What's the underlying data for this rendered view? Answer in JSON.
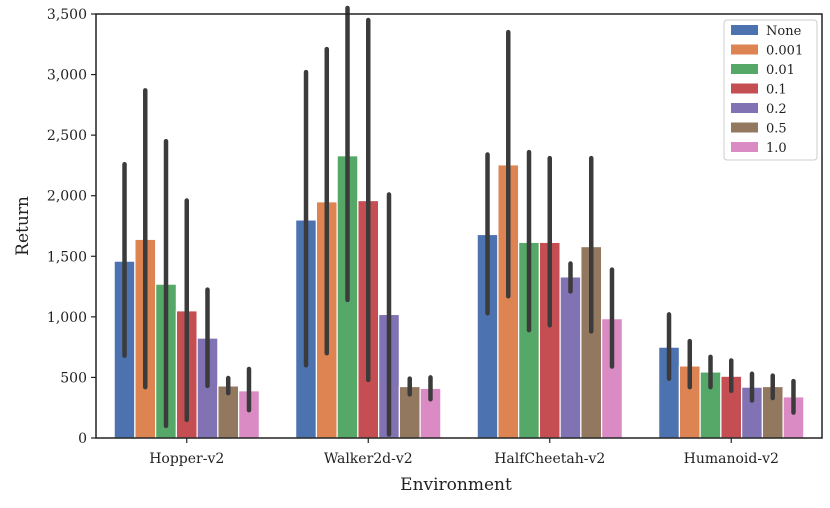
{
  "chart_data": {
    "type": "bar",
    "title": "",
    "xlabel": "Environment",
    "ylabel": "Return",
    "ylim": [
      0,
      3500
    ],
    "yticks": [
      0,
      500,
      1000,
      1500,
      2000,
      2500,
      3000,
      3500
    ],
    "ytick_labels": [
      "0",
      "500",
      "1,000",
      "1,500",
      "2,000",
      "2,500",
      "3,000",
      "3,500"
    ],
    "categories": [
      "Hopper-v2",
      "Walker2d-v2",
      "HalfCheetah-v2",
      "Humanoid-v2"
    ],
    "legend_position": "top-right",
    "grid": false,
    "series": [
      {
        "name": "None",
        "color": "#4c72b0",
        "values": [
          1460,
          1800,
          1680,
          750
        ],
        "ci_low": [
          680,
          600,
          1030,
          490
        ],
        "ci_high": [
          2260,
          3020,
          2340,
          1020
        ]
      },
      {
        "name": "0.001",
        "color": "#dd8452",
        "values": [
          1640,
          1950,
          2255,
          595
        ],
        "ci_low": [
          420,
          700,
          1170,
          420
        ],
        "ci_high": [
          2870,
          3210,
          3350,
          800
        ]
      },
      {
        "name": "0.01",
        "color": "#55a868",
        "values": [
          1270,
          2330,
          1615,
          545
        ],
        "ci_low": [
          100,
          1140,
          890,
          420
        ],
        "ci_high": [
          2450,
          3550,
          2360,
          670
        ]
      },
      {
        "name": "0.1",
        "color": "#c44e52",
        "values": [
          1050,
          1960,
          1615,
          510
        ],
        "ci_low": [
          150,
          480,
          930,
          390
        ],
        "ci_high": [
          1960,
          3450,
          2310,
          640
        ]
      },
      {
        "name": "0.2",
        "color": "#8172b3",
        "values": [
          825,
          1020,
          1330,
          420
        ],
        "ci_low": [
          430,
          30,
          1210,
          310
        ],
        "ci_high": [
          1225,
          2010,
          1440,
          530
        ]
      },
      {
        "name": "0.5",
        "color": "#937860",
        "values": [
          430,
          425,
          1580,
          425
        ],
        "ci_low": [
          370,
          360,
          880,
          330
        ],
        "ci_high": [
          495,
          490,
          2310,
          515
        ]
      },
      {
        "name": "1.0",
        "color": "#da8bc3",
        "values": [
          390,
          410,
          985,
          340
        ],
        "ci_low": [
          230,
          320,
          590,
          210
        ],
        "ci_high": [
          570,
          500,
          1390,
          470
        ]
      }
    ]
  }
}
